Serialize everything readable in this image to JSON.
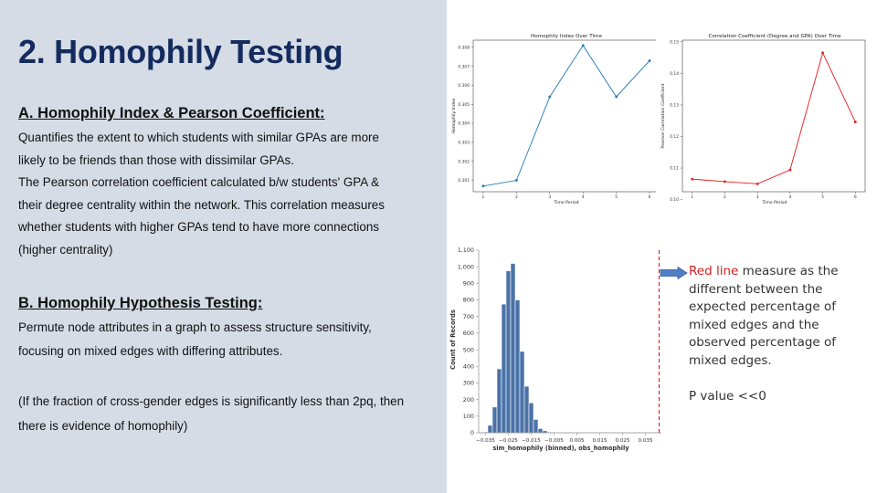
{
  "slide": {
    "title": "2. Homophily Testing",
    "section_a": {
      "heading": "A. Homophily Index & Pearson Coefficient:",
      "lines": [
        "Quantifies the extent to which students with similar GPAs are more",
        "likely to be friends than those with dissimilar GPAs.",
        "The Pearson correlation coefficient calculated b/w students' GPA &",
        "their degree centrality within the network. This correlation measures",
        "whether students with higher GPAs tend to have more connections",
        "(higher centrality)"
      ]
    },
    "section_b": {
      "heading": "B. Homophily Hypothesis Testing:",
      "lines": [
        "Permute node attributes in a graph to assess structure sensitivity,",
        "focusing on mixed edges with differing attributes."
      ]
    },
    "footnote": {
      "lines": [
        "(If the fraction of cross-gender edges is significantly less than 2pq, then",
        "there is evidence of homophily)"
      ]
    },
    "note": {
      "red_text": "Red line",
      "text": " measure as the different between the expected percentage of mixed edges and the observed percentage of mixed edges.",
      "pvalue": "P value <<0"
    }
  },
  "chart_data": [
    {
      "type": "line",
      "title": "Homophily Index Over Time",
      "xlabel": "Time Period",
      "ylabel": "Homophily Index",
      "x": [
        1,
        2,
        3,
        4,
        5,
        6
      ],
      "values": [
        0.3007,
        0.301,
        0.3054,
        0.3081,
        0.3054,
        0.3073
      ],
      "xlim": [
        0.7,
        6.3
      ],
      "ylim": [
        0.3004,
        0.30838
      ],
      "y_ticks": [
        0.301,
        0.302,
        0.303,
        0.304,
        0.305,
        0.306,
        0.307,
        0.308
      ],
      "y_tick_labels": [
        "0.301",
        "0.302",
        "0.303",
        "0.304",
        "0.305",
        "0.306",
        "0.307",
        "0.308"
      ],
      "x_tick_labels": [
        "1",
        "2",
        "3",
        "4",
        "5",
        "6"
      ],
      "color": "#1f77b4",
      "grid": false
    },
    {
      "type": "line",
      "title": "Correlation Coefficient (Degree and GPA) Over Time",
      "xlabel": "Time Period",
      "ylabel": "Pearson Correlation Coefficient",
      "x": [
        1,
        2,
        3,
        4,
        5,
        6
      ],
      "values": [
        0.1065,
        0.1057,
        0.105,
        0.1094,
        0.1465,
        0.1246
      ],
      "xlim": [
        0.7,
        6.3
      ],
      "ylim": [
        0.1025,
        0.1505
      ],
      "y_ticks": [
        0.1,
        0.11,
        0.12,
        0.13,
        0.14,
        0.15
      ],
      "y_tick_labels": [
        "0.10",
        "0.11",
        "0.12",
        "0.13",
        "0.14",
        "0.15"
      ],
      "x_tick_labels": [
        "1",
        "2",
        "3",
        "4",
        "5",
        "6"
      ],
      "color": "#e31a1c",
      "grid": false
    },
    {
      "type": "bar",
      "title": "",
      "xlabel": "sim_homophily (binned), obs_homophily",
      "ylabel": "Count of Records",
      "bin_start": -0.036,
      "bin_width": 0.002,
      "values": [
        5,
        45,
        155,
        385,
        775,
        975,
        1020,
        800,
        490,
        280,
        180,
        80,
        25,
        12,
        4,
        2,
        1
      ],
      "ylim": [
        0,
        1100
      ],
      "xlim": [
        -0.038,
        0.042
      ],
      "y_ticks": [
        0,
        100,
        200,
        300,
        400,
        500,
        600,
        700,
        800,
        900,
        1000,
        1100
      ],
      "y_tick_labels": [
        "0",
        "100",
        "200",
        "300",
        "400",
        "500",
        "600",
        "700",
        "800",
        "900",
        "1,000",
        "1,100"
      ],
      "x_ticks": [
        -0.035,
        -0.025,
        -0.015,
        -0.005,
        0.005,
        0.015,
        0.025,
        0.035
      ],
      "x_tick_labels": [
        "−0.035",
        "−0.025",
        "−0.015",
        "−0.005",
        "0.005",
        "0.015",
        "0.025",
        "0.035"
      ],
      "reference_line_x": 0.041,
      "bar_color": "#4a72a8",
      "line_color": "#e31a1c",
      "grid": false
    }
  ]
}
